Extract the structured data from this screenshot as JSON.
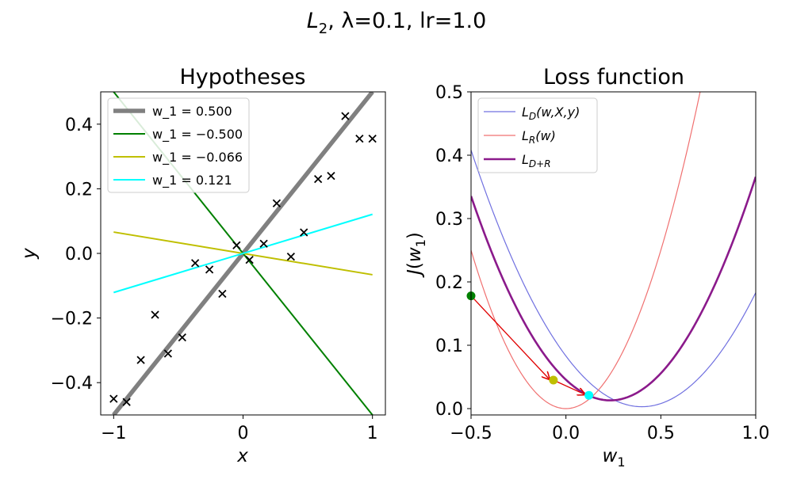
{
  "figure": {
    "suptitle_parts": [
      "L",
      "2",
      ", λ=0.1, lr=1.0"
    ]
  },
  "chart_data": [
    {
      "type": "scatter",
      "title": "Hypotheses",
      "xlabel": "x",
      "ylabel": "y",
      "xlim": [
        -1.1,
        1.1
      ],
      "ylim": [
        -0.5,
        0.5
      ],
      "xticks": [
        -1,
        0,
        1
      ],
      "yticks": [
        -0.4,
        -0.2,
        0.0,
        0.2,
        0.4
      ],
      "xtick_labels": [
        "−1",
        "0",
        "1"
      ],
      "ytick_labels": [
        "−0.4",
        "−0.2",
        "0.0",
        "0.2",
        "0.4"
      ],
      "legend_position": "top-left",
      "points": [
        [
          -1.0,
          -0.45
        ],
        [
          -0.9,
          -0.46
        ],
        [
          -0.79,
          -0.33
        ],
        [
          -0.68,
          -0.19
        ],
        [
          -0.58,
          -0.31
        ],
        [
          -0.47,
          -0.26
        ],
        [
          -0.37,
          -0.03
        ],
        [
          -0.26,
          -0.05
        ],
        [
          -0.16,
          -0.125
        ],
        [
          -0.05,
          0.025
        ],
        [
          0.05,
          -0.02
        ],
        [
          0.16,
          0.03
        ],
        [
          0.26,
          0.155
        ],
        [
          0.37,
          -0.01
        ],
        [
          0.47,
          0.065
        ],
        [
          0.58,
          0.23
        ],
        [
          0.68,
          0.24
        ],
        [
          0.79,
          0.425
        ],
        [
          0.9,
          0.355
        ],
        [
          1.0,
          0.355
        ]
      ],
      "lines": [
        {
          "label": "w_1 = 0.500",
          "slope": 0.5,
          "color": "#808080",
          "width": 5.5
        },
        {
          "label": "w_1 = −0.500",
          "slope": -0.5,
          "color": "#008000",
          "width": 2
        },
        {
          "label": "w_1 = −0.066",
          "slope": -0.066,
          "color": "#bfbf00",
          "width": 2
        },
        {
          "label": "w_1 = 0.121",
          "slope": 0.121,
          "color": "#00ffff",
          "width": 2
        }
      ]
    },
    {
      "type": "line",
      "title": "Loss function",
      "xlabel": "w_1",
      "ylabel": "J(w_1)",
      "xlim": [
        -0.5,
        1.0
      ],
      "ylim": [
        -0.01,
        0.5
      ],
      "xticks": [
        -0.5,
        0.0,
        0.5,
        1.0
      ],
      "yticks": [
        0.0,
        0.1,
        0.2,
        0.3,
        0.4,
        0.5
      ],
      "xtick_labels": [
        "−0.5",
        "0.0",
        "0.5",
        "1.0"
      ],
      "ytick_labels": [
        "0.0",
        "0.1",
        "0.2",
        "0.3",
        "0.4",
        "0.5"
      ],
      "legend_position": "top-left",
      "curves": [
        {
          "label": "L_D(w,X,y)",
          "color": "#7070e0",
          "width": 1.2,
          "coeffs": [
            0.5,
            0.003,
            0.4
          ]
        },
        {
          "label": "L_R(w)",
          "color": "#f07070",
          "width": 1.2,
          "coeffs": [
            1.0,
            0.0,
            0.0
          ]
        },
        {
          "label": "L_D+R",
          "color": "#8b1a8b",
          "width": 2.6,
          "coeffs": [
            0.6,
            0.013,
            0.233
          ]
        }
      ],
      "gd_points": [
        {
          "w": -0.5,
          "J": 0.178,
          "color": "#008000"
        },
        {
          "w": -0.066,
          "J": 0.045,
          "color": "#bfbf00"
        },
        {
          "w": 0.121,
          "J": 0.021,
          "color": "#00ffff"
        }
      ],
      "arrow_color": "#e00000"
    }
  ]
}
